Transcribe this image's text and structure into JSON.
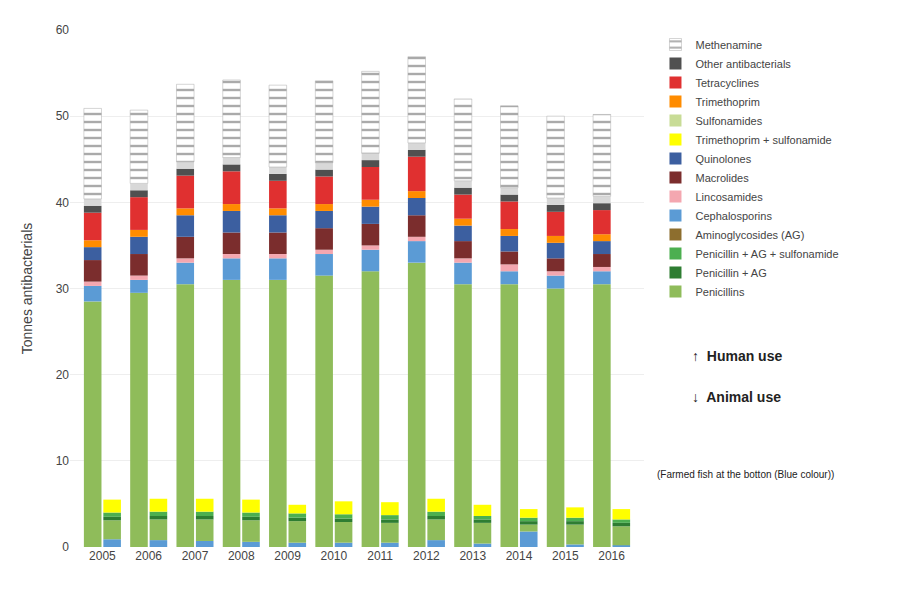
{
  "chart_data": {
    "type": "bar",
    "stacked": true,
    "ylabel": "Tonnes antibacterials",
    "categories": [
      2005,
      2006,
      2007,
      2008,
      2009,
      2010,
      2011,
      2012,
      2013,
      2014,
      2015,
      2016
    ],
    "ylim": [
      0,
      60
    ],
    "yticks": [
      0,
      10,
      20,
      30,
      40,
      50,
      60
    ],
    "grid": true,
    "legend": "right",
    "stacks": [
      {
        "series": [
          {
            "name": "Penicillins",
            "color": "#8fbc5a",
            "values": [
              28.5,
              29.5,
              30.5,
              31.0,
              31.0,
              31.5,
              32.0,
              33.0,
              30.5,
              30.5,
              30.0,
              30.5
            ]
          },
          {
            "name": "Cephalosporins",
            "color": "#5b9bd5",
            "values": [
              1.8,
              1.5,
              2.5,
              2.5,
              2.5,
              2.5,
              2.5,
              2.5,
              2.5,
              1.5,
              1.5,
              1.5
            ]
          },
          {
            "name": "Lincosamides",
            "color": "#f4a7b0",
            "values": [
              0.5,
              0.5,
              0.5,
              0.5,
              0.5,
              0.5,
              0.5,
              0.5,
              0.5,
              0.8,
              0.5,
              0.5
            ]
          },
          {
            "name": "Macrolides",
            "color": "#7b2d2d",
            "values": [
              2.5,
              2.5,
              2.5,
              2.5,
              2.5,
              2.5,
              2.5,
              2.5,
              2.0,
              1.5,
              1.5,
              1.5
            ]
          },
          {
            "name": "Quinolones",
            "color": "#3c5fa0",
            "values": [
              1.5,
              2.0,
              2.5,
              2.5,
              2.0,
              2.0,
              2.0,
              2.0,
              1.8,
              1.8,
              1.8,
              1.5
            ]
          },
          {
            "name": "Trimethoprim",
            "color": "#ff8c00",
            "values": [
              0.8,
              0.8,
              0.8,
              0.8,
              0.8,
              0.8,
              0.8,
              0.8,
              0.8,
              0.8,
              0.8,
              0.8
            ]
          },
          {
            "name": "Tetracyclines",
            "color": "#e03030",
            "values": [
              3.2,
              3.8,
              3.8,
              3.8,
              3.2,
              3.2,
              3.8,
              4.0,
              2.8,
              3.2,
              2.8,
              2.8
            ]
          },
          {
            "name": "Other antibacterials",
            "color": "#505050",
            "values": [
              0.8,
              0.8,
              0.8,
              0.8,
              0.8,
              0.8,
              0.8,
              0.8,
              0.8,
              0.8,
              0.8,
              0.8
            ]
          },
          {
            "name": "Methenamine",
            "color": "#d8d8d8",
            "values": [
              0.8,
              0.8,
              0.8,
              0.8,
              0.8,
              0.8,
              0.8,
              0.8,
              0.8,
              0.8,
              0.8,
              0.8
            ]
          },
          {
            "name": "Methenamine",
            "color": "#aaaaaa",
            "marker": "hatched",
            "values": [
              10.5,
              8.5,
              9.0,
              9.0,
              9.5,
              9.5,
              9.5,
              10.0,
              9.5,
              9.5,
              9.5,
              9.5
            ]
          }
        ]
      },
      {
        "series": [
          {
            "color": "#5b9bd5",
            "values": [
              0.9,
              0.8,
              0.7,
              0.6,
              0.5,
              0.5,
              0.5,
              0.8,
              0.4,
              1.8,
              0.3,
              0.2
            ]
          },
          {
            "name": "Penicillins",
            "color": "#8fbc5a",
            "values": [
              2.2,
              2.4,
              2.5,
              2.5,
              2.5,
              2.4,
              2.3,
              2.4,
              2.4,
              0.8,
              2.3,
              2.2
            ]
          },
          {
            "name": "Penicillin + AG",
            "color": "#2e7d32",
            "values": [
              0.4,
              0.4,
              0.4,
              0.4,
              0.4,
              0.4,
              0.4,
              0.4,
              0.4,
              0.4,
              0.4,
              0.4
            ]
          },
          {
            "name": "Penicillin + AG + sulfonamide",
            "color": "#4caf50",
            "values": [
              0.5,
              0.5,
              0.5,
              0.5,
              0.5,
              0.5,
              0.5,
              0.5,
              0.4,
              0.4,
              0.4,
              0.4
            ]
          },
          {
            "name": "Trimethoprim + sulfonamide",
            "color": "#ffff00",
            "values": [
              1.5,
              1.5,
              1.5,
              1.5,
              1.0,
              1.5,
              1.5,
              1.5,
              1.3,
              1.0,
              1.2,
              1.2
            ]
          }
        ]
      }
    ],
    "legend_entries": [
      {
        "name": "Methenamine",
        "color": "#aaaaaa",
        "marker": "hatched"
      },
      {
        "name": "Other antibacterials",
        "color": "#505050"
      },
      {
        "name": "Tetracyclines",
        "color": "#e03030"
      },
      {
        "name": "Trimethoprim",
        "color": "#ff8c00"
      },
      {
        "name": "Sulfonamides",
        "color": "#c8dc96"
      },
      {
        "name": "Trimethoprim + sulfonamide",
        "color": "#ffff00"
      },
      {
        "name": "Quinolones",
        "color": "#3c5fa0"
      },
      {
        "name": "Macrolides",
        "color": "#7b2d2d"
      },
      {
        "name": "Lincosamides",
        "color": "#f4a7b0"
      },
      {
        "name": "Cephalosporins",
        "color": "#5b9bd5"
      },
      {
        "name": "Aminoglycosides (AG)",
        "color": "#8d6e2e"
      },
      {
        "name": "Penicillin + AG + sulfonamide",
        "color": "#4caf50"
      },
      {
        "name": "Penicillin + AG",
        "color": "#2e7d32"
      },
      {
        "name": "Penicillins",
        "color": "#8fbc5a"
      }
    ],
    "annotations": [
      "↑  Human use",
      "↓  Animal use",
      "(Farmed fish at the botton (Blue colour))"
    ]
  }
}
